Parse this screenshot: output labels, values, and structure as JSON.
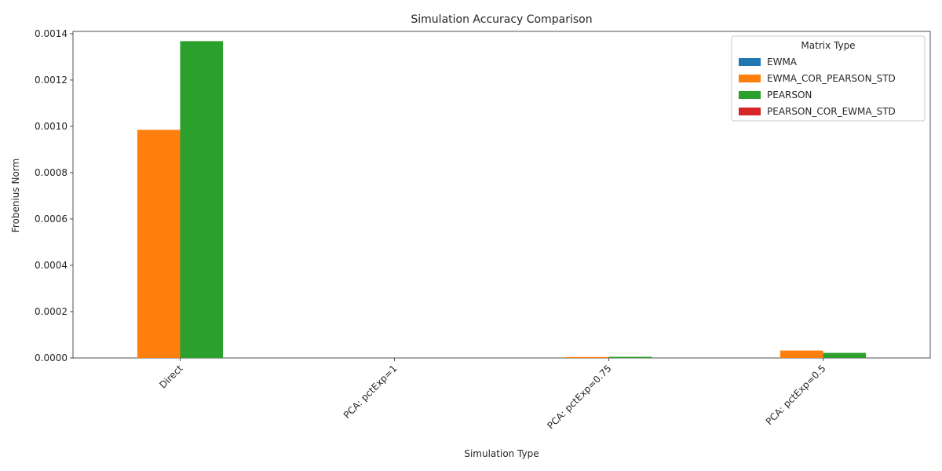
{
  "chart_data": {
    "type": "bar",
    "title": "Simulation Accuracy Comparison",
    "xlabel": "Simulation Type",
    "ylabel": "Frobenius Norm",
    "categories": [
      "Direct",
      "PCA: pctExp=1",
      "PCA: pctExp=0.75",
      "PCA: pctExp=0.5"
    ],
    "series": [
      {
        "name": "EWMA",
        "color": "#1f77b4",
        "values": [
          0,
          0,
          0,
          0
        ]
      },
      {
        "name": "EWMA_COR_PEARSON_STD",
        "color": "#ff7f0e",
        "values": [
          0.000985,
          0,
          4e-06,
          3.2e-05
        ]
      },
      {
        "name": "PEARSON",
        "color": "#2ca02c",
        "values": [
          0.001368,
          0,
          5e-06,
          2.2e-05
        ]
      },
      {
        "name": "PEARSON_COR_EWMA_STD",
        "color": "#d62728",
        "values": [
          0,
          0,
          0,
          0
        ]
      }
    ],
    "ylim": [
      0,
      0.00141
    ],
    "yticks": [
      0,
      0.0002,
      0.0004,
      0.0006,
      0.0008,
      0.001,
      0.0012,
      0.0014
    ],
    "ytick_labels": [
      "0.0000",
      "0.0002",
      "0.0004",
      "0.0006",
      "0.0008",
      "0.0010",
      "0.0012",
      "0.0014"
    ],
    "grid": false,
    "legend": {
      "title": "Matrix Type",
      "placement": "top-right"
    }
  }
}
